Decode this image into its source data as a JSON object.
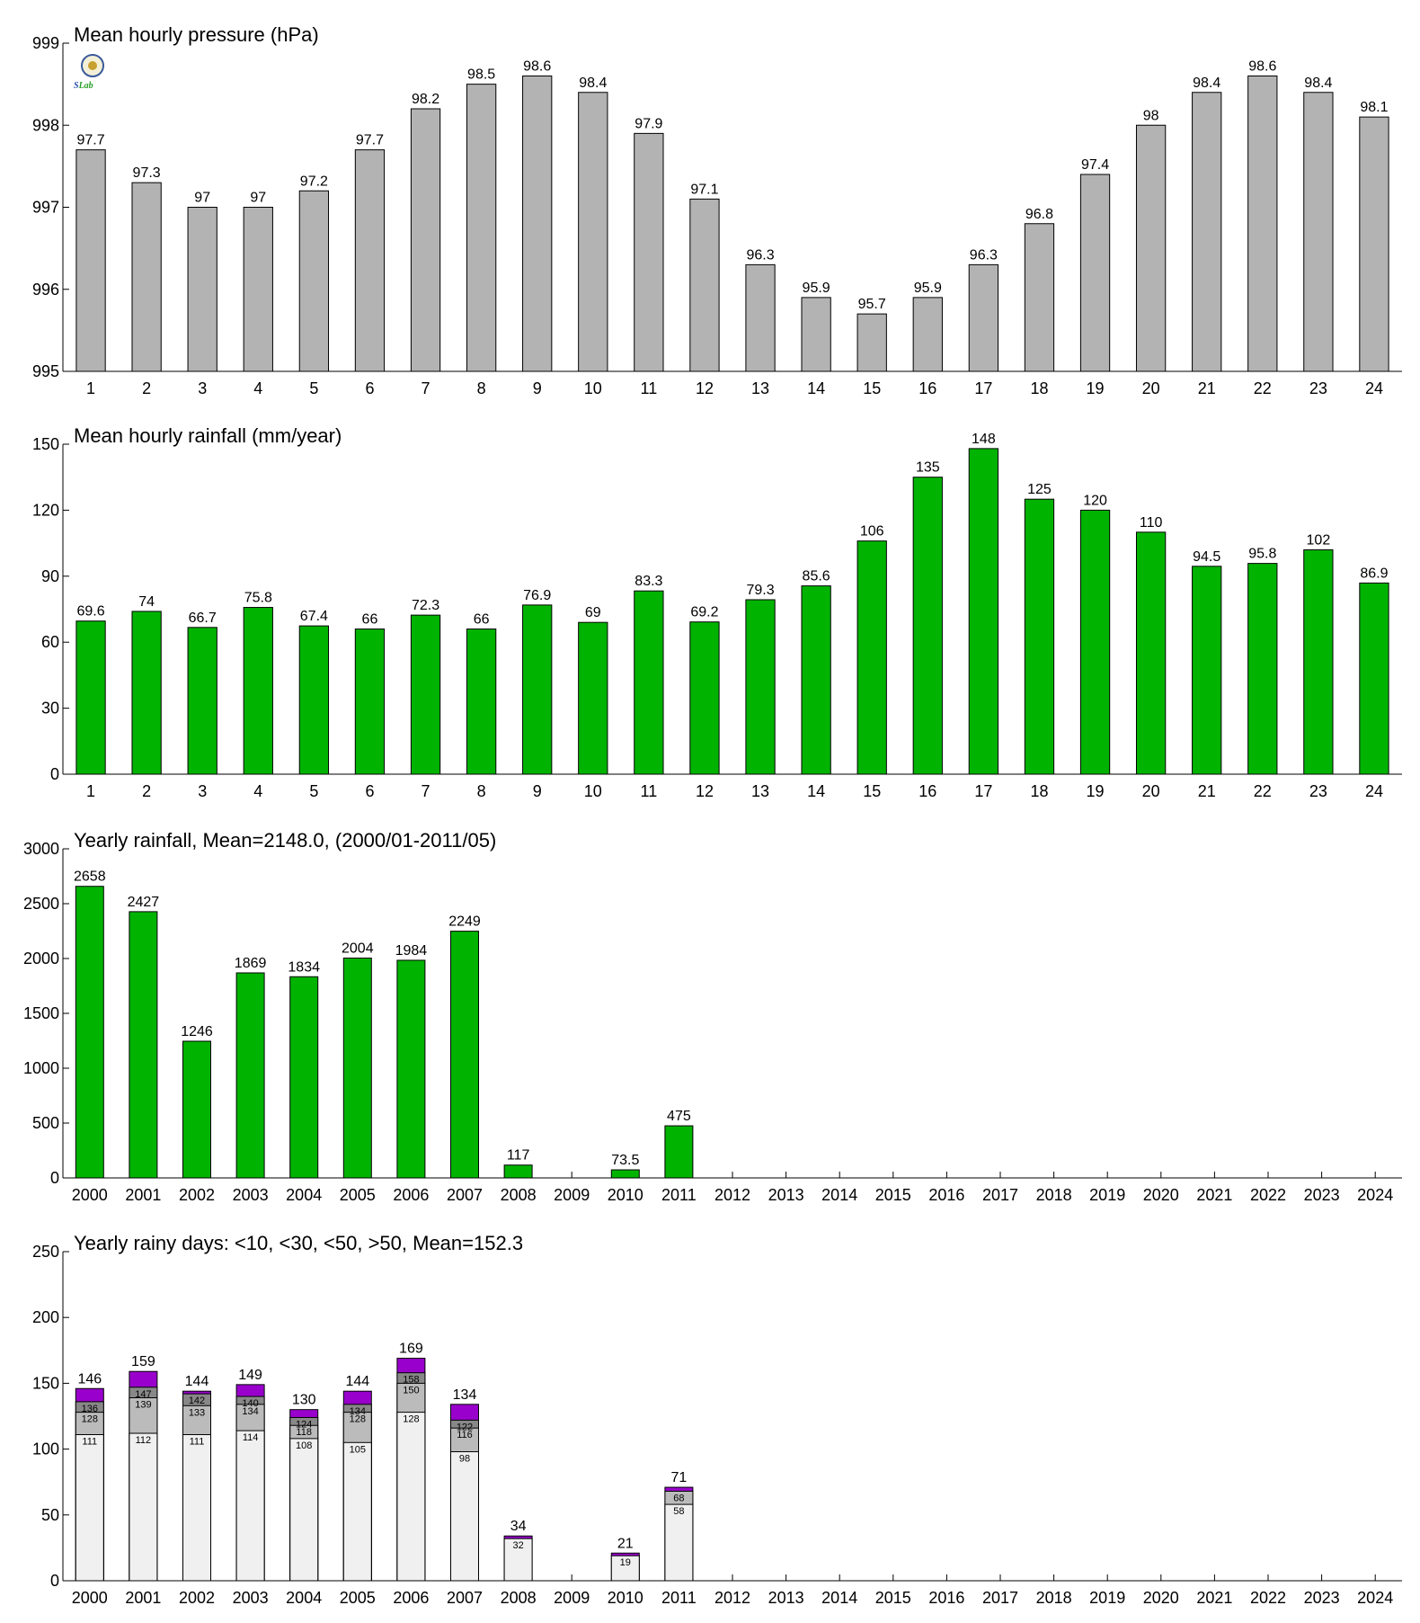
{
  "logo": {
    "text_left": "S",
    "text_right": "Lab",
    "icon": "seal-logo-icon"
  },
  "colors": {
    "gray_bar": "#b3b3b3",
    "green_bar": "#00b300",
    "purple_bar": "#9900cc",
    "seg_gt30": "#888888",
    "seg_lt30": "#bbbbbb",
    "seg_lt10": "#f0f0f0"
  },
  "chart_data": [
    {
      "type": "bar",
      "title": "Mean hourly pressure (hPa)",
      "categories": [
        "1",
        "2",
        "3",
        "4",
        "5",
        "6",
        "7",
        "8",
        "9",
        "10",
        "11",
        "12",
        "13",
        "14",
        "15",
        "16",
        "17",
        "18",
        "19",
        "20",
        "21",
        "22",
        "23",
        "24"
      ],
      "values": [
        997.7,
        997.3,
        997.0,
        997.0,
        997.2,
        997.7,
        998.2,
        998.5,
        998.6,
        998.4,
        997.9,
        997.1,
        996.3,
        995.9,
        995.7,
        995.9,
        996.3,
        996.8,
        997.4,
        998.0,
        998.4,
        998.6,
        998.4,
        998.1
      ],
      "labels": [
        "97.7",
        "97.3",
        "97",
        "97",
        "97.2",
        "97.7",
        "98.2",
        "98.5",
        "98.6",
        "98.4",
        "97.9",
        "97.1",
        "96.3",
        "95.9",
        "95.7",
        "95.9",
        "96.3",
        "96.8",
        "97.4",
        "98",
        "98.4",
        "98.6",
        "98.4",
        "98.1"
      ],
      "yticks": [
        "995",
        "996",
        "997",
        "998",
        "999"
      ],
      "ylim": [
        995,
        999
      ],
      "color": "#b3b3b3"
    },
    {
      "type": "bar",
      "title": "Mean hourly rainfall (mm/year)",
      "categories": [
        "1",
        "2",
        "3",
        "4",
        "5",
        "6",
        "7",
        "8",
        "9",
        "10",
        "11",
        "12",
        "13",
        "14",
        "15",
        "16",
        "17",
        "18",
        "19",
        "20",
        "21",
        "22",
        "23",
        "24"
      ],
      "values": [
        69.6,
        74,
        66.7,
        75.8,
        67.4,
        66,
        72.3,
        66,
        76.9,
        69,
        83.3,
        69.2,
        79.3,
        85.6,
        106,
        135,
        148,
        125,
        120,
        110,
        94.5,
        95.8,
        102,
        86.9
      ],
      "labels": [
        "69.6",
        "74",
        "66.7",
        "75.8",
        "67.4",
        "66",
        "72.3",
        "66",
        "76.9",
        "69",
        "83.3",
        "69.2",
        "79.3",
        "85.6",
        "106",
        "135",
        "148",
        "125",
        "120",
        "110",
        "94.5",
        "95.8",
        "102",
        "86.9"
      ],
      "yticks": [
        "0",
        "30",
        "60",
        "90",
        "120",
        "150"
      ],
      "ylim": [
        0,
        150
      ],
      "color": "#00b300"
    },
    {
      "type": "bar",
      "title": "Yearly rainfall, Mean=2148.0, (2000/01-2011/05)",
      "categories": [
        "2000",
        "2001",
        "2002",
        "2003",
        "2004",
        "2005",
        "2006",
        "2007",
        "2008",
        "2009",
        "2010",
        "2011",
        "2012",
        "2013",
        "2014",
        "2015",
        "2016",
        "2017",
        "2018",
        "2019",
        "2020",
        "2021",
        "2022",
        "2023",
        "2024"
      ],
      "values": [
        2658,
        2427,
        1246,
        1869,
        1834,
        2004,
        1984,
        2249,
        117,
        null,
        73.5,
        475,
        null,
        null,
        null,
        null,
        null,
        null,
        null,
        null,
        null,
        null,
        null,
        null,
        null
      ],
      "labels": [
        "2658",
        "2427",
        "1246",
        "1869",
        "1834",
        "2004",
        "1984",
        "2249",
        "117",
        "",
        "73.5",
        "475",
        "",
        "",
        "",
        "",
        "",
        "",
        "",
        "",
        "",
        "",
        "",
        "",
        ""
      ],
      "yticks": [
        "0",
        "500",
        "1000",
        "1500",
        "2000",
        "2500",
        "3000"
      ],
      "ylim": [
        0,
        3000
      ],
      "color": "#00b300"
    },
    {
      "type": "bar",
      "stacked": true,
      "title": "Yearly rainy days: <10, <30, <50, >50, Mean=152.3",
      "categories": [
        "2000",
        "2001",
        "2002",
        "2003",
        "2004",
        "2005",
        "2006",
        "2007",
        "2008",
        "2009",
        "2010",
        "2011",
        "2012",
        "2013",
        "2014",
        "2015",
        "2016",
        "2017",
        "2018",
        "2019",
        "2020",
        "2021",
        "2022",
        "2023",
        "2024"
      ],
      "totals": [
        146,
        159,
        144,
        149,
        130,
        144,
        169,
        134,
        34,
        null,
        21,
        71,
        null,
        null,
        null,
        null,
        null,
        null,
        null,
        null,
        null,
        null,
        null,
        null,
        null
      ],
      "total_labels": [
        "146",
        "159",
        "144",
        "149",
        "130",
        "144",
        "169",
        "134",
        "34",
        "",
        "21",
        "71",
        "",
        "",
        "",
        "",
        "",
        "",
        "",
        "",
        "",
        "",
        "",
        "",
        ""
      ],
      "lt10": [
        111,
        112,
        111,
        114,
        108,
        105,
        128,
        98,
        32,
        null,
        19,
        58,
        null,
        null,
        null,
        null,
        null,
        null,
        null,
        null,
        null,
        null,
        null,
        null,
        null
      ],
      "lt10_labels": [
        "111",
        "112",
        "111",
        "114",
        "108",
        "105",
        "128",
        "98",
        "32",
        "",
        "19",
        "58",
        "",
        "",
        "",
        "",
        "",
        "",
        "",
        "",
        "",
        "",
        "",
        "",
        ""
      ],
      "lt30": [
        128,
        139,
        133,
        134,
        118,
        128,
        150,
        116,
        null,
        null,
        null,
        68,
        null,
        null,
        null,
        null,
        null,
        null,
        null,
        null,
        null,
        null,
        null,
        null,
        null
      ],
      "lt30_labels": [
        "128",
        "139",
        "133",
        "134",
        "118",
        "128",
        "150",
        "116",
        "",
        "",
        "",
        "68",
        "",
        "",
        "",
        "",
        "",
        "",
        "",
        "",
        "",
        "",
        "",
        "",
        ""
      ],
      "lt50": [
        136,
        147,
        142,
        140,
        124,
        134,
        158,
        122,
        null,
        null,
        null,
        null,
        null,
        null,
        null,
        null,
        null,
        null,
        null,
        null,
        null,
        null,
        null,
        null,
        null
      ],
      "lt50_labels": [
        "136",
        "147",
        "142",
        "140",
        "124",
        "134",
        "158",
        "122",
        "",
        "",
        "",
        "",
        "",
        "",
        "",
        "",
        "",
        "",
        "",
        "",
        "",
        "",
        "",
        "",
        ""
      ],
      "yticks": [
        "0",
        "50",
        "100",
        "150",
        "200",
        "250"
      ],
      "ylim": [
        0,
        250
      ]
    }
  ]
}
